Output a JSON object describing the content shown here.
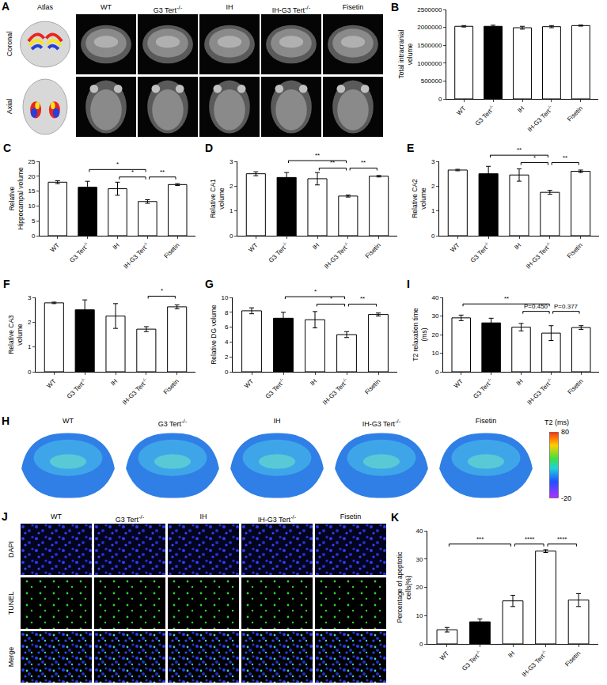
{
  "panels": {
    "A": {
      "label": "A",
      "atlas_label": "Atlas",
      "row_labels": [
        "Coronal",
        "Axial"
      ],
      "columns": [
        "WT",
        "G3 Tert-/-",
        "IH",
        "IH-G3 Tert-/-",
        "Fisetin"
      ]
    },
    "H": {
      "label": "H",
      "columns": [
        "WT",
        "G3 Tert-/-",
        "IH",
        "IH-G3 Tert-/-",
        "Fisetin"
      ],
      "colorbar": {
        "title": "T2 (ms)",
        "range": [
          -20,
          80
        ],
        "ticks": [
          80,
          -20
        ]
      }
    },
    "J": {
      "label": "J",
      "row_labels": [
        "DAPI",
        "TUNEL",
        "Merge"
      ],
      "columns": [
        "WT",
        "G3 Tert-/-",
        "IH",
        "IH-G3 Tert-/-",
        "Fisetin"
      ]
    }
  },
  "chart_data": [
    {
      "panel": "B",
      "type": "bar",
      "categories": [
        "WT",
        "G3 Tert-/-",
        "IH",
        "IH-G3 Tert-/-",
        "Fisetin"
      ],
      "values": [
        2030000,
        2030000,
        1990000,
        2020000,
        2050000
      ],
      "errors": [
        20000,
        30000,
        40000,
        30000,
        15000
      ],
      "colors": [
        "#ffffff",
        "#000000",
        "#ffffff",
        "#ffffff",
        "#ffffff"
      ],
      "y_label": "Total intracranial volume",
      "ylim": [
        0,
        2500000
      ],
      "yticks": [
        0,
        500000,
        1000000,
        1500000,
        2000000,
        2500000
      ],
      "grid": false,
      "comparisons": []
    },
    {
      "panel": "C",
      "type": "bar",
      "categories": [
        "WT",
        "G3 Tert-/-",
        "IH",
        "IH-G3 Tert-/-",
        "Fisetin"
      ],
      "values": [
        18,
        16.3,
        15.8,
        11.5,
        17.2
      ],
      "errors": [
        0.5,
        2,
        2.2,
        0.6,
        0.3
      ],
      "colors": [
        "#ffffff",
        "#000000",
        "#ffffff",
        "#ffffff",
        "#ffffff"
      ],
      "y_label": "Relative Hippocampal volume",
      "ylim": [
        0,
        25
      ],
      "yticks": [
        0,
        5,
        10,
        15,
        20,
        25
      ],
      "grid": false,
      "comparisons": [
        {
          "from": "G3 Tert-/-",
          "to": "IH-G3 Tert-/-",
          "label": "*"
        },
        {
          "from": "IH",
          "to": "IH-G3 Tert-/-",
          "label": "*"
        },
        {
          "from": "IH-G3 Tert-/-",
          "to": "Fisetin",
          "label": "**"
        }
      ]
    },
    {
      "panel": "D",
      "type": "bar",
      "categories": [
        "WT",
        "G3 Tert-/-",
        "IH",
        "IH-G3 Tert-/-",
        "Fisetin"
      ],
      "values": [
        2.5,
        2.35,
        2.3,
        1.6,
        2.4
      ],
      "errors": [
        0.08,
        0.2,
        0.25,
        0.04,
        0.03
      ],
      "colors": [
        "#ffffff",
        "#000000",
        "#ffffff",
        "#ffffff",
        "#ffffff"
      ],
      "y_label": "Relative CA1 volume",
      "ylim": [
        0,
        3
      ],
      "yticks": [
        0,
        1,
        2,
        3
      ],
      "grid": false,
      "comparisons": [
        {
          "from": "G3 Tert-/-",
          "to": "IH-G3 Tert-/-",
          "label": "**"
        },
        {
          "from": "IH",
          "to": "IH-G3 Tert-/-",
          "label": "**"
        },
        {
          "from": "IH-G3 Tert-/-",
          "to": "Fisetin",
          "label": "**"
        }
      ]
    },
    {
      "panel": "E",
      "type": "bar",
      "categories": [
        "WT",
        "G3 Tert-/-",
        "IH",
        "IH-G3 Tert-/-",
        "Fisetin"
      ],
      "values": [
        2.65,
        2.5,
        2.45,
        1.75,
        2.6
      ],
      "errors": [
        0.03,
        0.3,
        0.25,
        0.08,
        0.05
      ],
      "colors": [
        "#ffffff",
        "#000000",
        "#ffffff",
        "#ffffff",
        "#ffffff"
      ],
      "y_label": "Relative CA2 volume",
      "ylim": [
        0,
        3
      ],
      "yticks": [
        0,
        1,
        2,
        3
      ],
      "grid": false,
      "comparisons": [
        {
          "from": "G3 Tert-/-",
          "to": "IH-G3 Tert-/-",
          "label": "**"
        },
        {
          "from": "IH",
          "to": "IH-G3 Tert-/-",
          "label": "*"
        },
        {
          "from": "IH-G3 Tert-/-",
          "to": "Fisetin",
          "label": "**"
        }
      ]
    },
    {
      "panel": "F",
      "type": "bar",
      "categories": [
        "WT",
        "G3 Tert-/-",
        "IH",
        "IH-G3 Tert-/-",
        "Fisetin"
      ],
      "values": [
        2.78,
        2.5,
        2.25,
        1.72,
        2.62
      ],
      "errors": [
        0.03,
        0.4,
        0.5,
        0.1,
        0.08
      ],
      "colors": [
        "#ffffff",
        "#000000",
        "#ffffff",
        "#ffffff",
        "#ffffff"
      ],
      "y_label": "Relative CA3 volume",
      "ylim": [
        0,
        3
      ],
      "yticks": [
        0,
        1,
        2,
        3
      ],
      "grid": false,
      "comparisons": [
        {
          "from": "IH-G3 Tert-/-",
          "to": "Fisetin",
          "label": "*"
        }
      ]
    },
    {
      "panel": "G",
      "type": "bar",
      "categories": [
        "WT",
        "G3 Tert-/-",
        "IH",
        "IH-G3 Tert-/-",
        "Fisetin"
      ],
      "values": [
        8.2,
        7.2,
        7,
        5,
        7.7
      ],
      "errors": [
        0.4,
        0.8,
        1.1,
        0.4,
        0.2
      ],
      "colors": [
        "#ffffff",
        "#000000",
        "#ffffff",
        "#ffffff",
        "#ffffff"
      ],
      "y_label": "Relative DG volume",
      "ylim": [
        0,
        10
      ],
      "yticks": [
        0,
        2,
        4,
        6,
        8,
        10
      ],
      "grid": false,
      "comparisons": [
        {
          "from": "G3 Tert-/-",
          "to": "IH-G3 Tert-/-",
          "label": "*"
        },
        {
          "from": "IH",
          "to": "IH-G3 Tert-/-",
          "label": "*"
        },
        {
          "from": "IH-G3 Tert-/-",
          "to": "Fisetin",
          "label": "**"
        }
      ]
    },
    {
      "panel": "I",
      "type": "bar",
      "categories": [
        "WT",
        "G3 Tert-/-",
        "IH",
        "IH-G3 Tert-/-",
        "Fisetin"
      ],
      "values": [
        29,
        26.3,
        24,
        20.8,
        23.8
      ],
      "errors": [
        1.5,
        2.5,
        2,
        4,
        1
      ],
      "colors": [
        "#ffffff",
        "#000000",
        "#ffffff",
        "#ffffff",
        "#ffffff"
      ],
      "y_label": "T2 relaxation time (ms)",
      "ylim": [
        0,
        40
      ],
      "yticks": [
        0,
        10,
        20,
        30,
        40
      ],
      "grid": false,
      "comparisons": [
        {
          "from": "WT",
          "to": "IH-G3 Tert-/-",
          "label": "**"
        },
        {
          "from": "IH",
          "to": "IH-G3 Tert-/-",
          "label": "P=0.450"
        },
        {
          "from": "IH-G3 Tert-/-",
          "to": "Fisetin",
          "label": "P=0.377"
        }
      ]
    },
    {
      "panel": "K",
      "type": "bar",
      "categories": [
        "WT",
        "G3 Tert-/-",
        "IH",
        "IH-G3 Tert-/-",
        "Fisetin"
      ],
      "values": [
        5,
        7.8,
        15.2,
        32.8,
        15.5
      ],
      "errors": [
        0.8,
        1,
        2,
        0.5,
        2.3
      ],
      "colors": [
        "#ffffff",
        "#000000",
        "#ffffff",
        "#ffffff",
        "#ffffff"
      ],
      "y_label": "Percentage of apoptotic cells(%)",
      "ylim": [
        0,
        40
      ],
      "yticks": [
        0,
        10,
        20,
        30,
        40
      ],
      "grid": false,
      "comparisons": [
        {
          "from": "WT",
          "to": "IH",
          "label": "***"
        },
        {
          "from": "IH",
          "to": "IH-G3 Tert-/-",
          "label": "****"
        },
        {
          "from": "IH-G3 Tert-/-",
          "to": "Fisetin",
          "label": "****"
        }
      ]
    }
  ]
}
